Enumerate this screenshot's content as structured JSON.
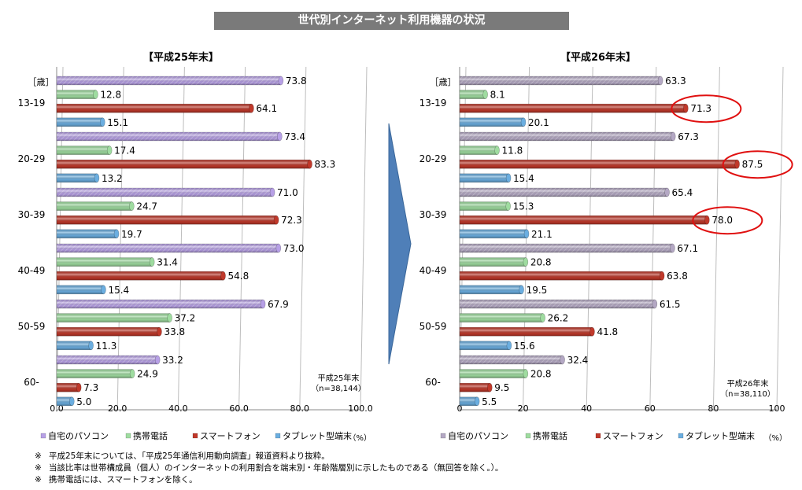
{
  "banner_title": "世代別インターネット利用機器の状況",
  "chart_data": [
    {
      "type": "bar",
      "orientation": "horizontal",
      "title": "【平成25年末】",
      "categories": [
        "13-19",
        "20-29",
        "30-39",
        "40-49",
        "50-59",
        "60-"
      ],
      "category_unit_label": "［歳］",
      "series": [
        {
          "name": "自宅のパソコン",
          "values": [
            73.8,
            73.4,
            71.0,
            73.0,
            67.9,
            33.2
          ],
          "color": "#b7a0e6"
        },
        {
          "name": "携帯電話",
          "values": [
            12.8,
            17.4,
            24.7,
            31.4,
            37.2,
            24.9
          ],
          "color": "#9fdca0"
        },
        {
          "name": "スマートフォン",
          "values": [
            64.1,
            83.3,
            72.3,
            54.8,
            33.8,
            7.3
          ],
          "color": "#c0392b"
        },
        {
          "name": "タブレット型端末",
          "values": [
            15.1,
            13.2,
            19.7,
            15.4,
            11.3,
            5.0
          ],
          "color": "#6baee0"
        }
      ],
      "xlim": [
        0,
        100
      ],
      "xticks": [
        "0.0",
        "20.0",
        "40.0",
        "60.0",
        "80.0",
        "100.0"
      ],
      "xunit": "（%）",
      "note_lines": [
        "平成25年末",
        "（n=38,144）"
      ],
      "decimals": 1
    },
    {
      "type": "bar",
      "orientation": "horizontal",
      "title": "【平成26年末】",
      "categories": [
        "13-19",
        "20-29",
        "30-39",
        "40-49",
        "50-59",
        "60-"
      ],
      "category_unit_label": "［歳］",
      "series": [
        {
          "name": "自宅のパソコン",
          "values": [
            63.3,
            67.3,
            65.4,
            67.1,
            61.5,
            32.4
          ],
          "color": "#b4a8c4"
        },
        {
          "name": "携帯電話",
          "values": [
            8.1,
            11.8,
            15.3,
            20.8,
            26.2,
            20.8
          ],
          "color": "#9fdca0"
        },
        {
          "name": "スマートフォン",
          "values": [
            71.3,
            87.5,
            78.0,
            63.8,
            41.8,
            9.5
          ],
          "color": "#c0392b"
        },
        {
          "name": "タブレット型端末",
          "values": [
            20.1,
            15.4,
            21.1,
            19.5,
            15.6,
            5.5
          ],
          "color": "#6baee0"
        }
      ],
      "xlim": [
        0,
        100
      ],
      "xticks": [
        "0",
        "20",
        "40",
        "60",
        "80",
        "100"
      ],
      "xunit": "（%）",
      "note_lines": [
        "平成26年末",
        "（n=38,110）"
      ],
      "highlighted": [
        "71.3",
        "87.5",
        "78.0"
      ],
      "decimals": 1
    }
  ],
  "footnotes": [
    {
      "mark": "※",
      "text": "平成25年末については、「平成25年通信利用動向調査」報道資料より抜粋。"
    },
    {
      "mark": "※",
      "text": "当該比率は世帯構成員（個人）のインターネットの利用割合を端末別・年齢階層別に示したものである（無回答を除く。）。"
    },
    {
      "mark": "※",
      "text": "携帯電話には、スマートフォンを除く。"
    }
  ]
}
